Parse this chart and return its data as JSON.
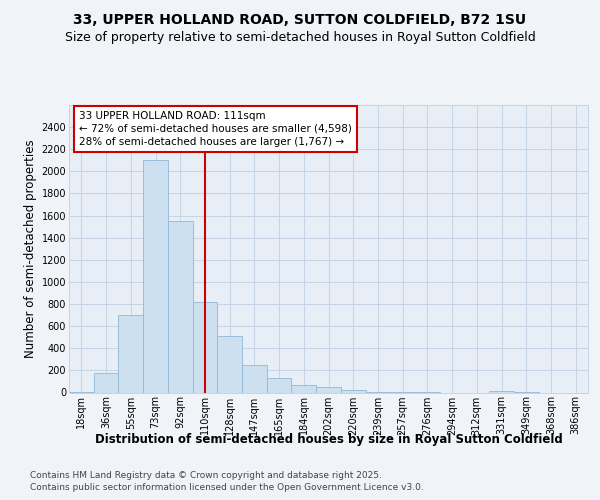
{
  "title": "33, UPPER HOLLAND ROAD, SUTTON COLDFIELD, B72 1SU",
  "subtitle": "Size of property relative to semi-detached houses in Royal Sutton Coldfield",
  "xlabel": "Distribution of semi-detached houses by size in Royal Sutton Coldfield",
  "ylabel": "Number of semi-detached properties",
  "footer1": "Contains HM Land Registry data © Crown copyright and database right 2025.",
  "footer2": "Contains public sector information licensed under the Open Government Licence v3.0.",
  "property_label": "33 UPPER HOLLAND ROAD: 111sqm",
  "smaller_pct": "← 72% of semi-detached houses are smaller (4,598)",
  "larger_pct": "28% of semi-detached houses are larger (1,767) →",
  "bin_labels": [
    "18sqm",
    "36sqm",
    "55sqm",
    "73sqm",
    "92sqm",
    "110sqm",
    "128sqm",
    "147sqm",
    "165sqm",
    "184sqm",
    "202sqm",
    "220sqm",
    "239sqm",
    "257sqm",
    "276sqm",
    "294sqm",
    "312sqm",
    "331sqm",
    "349sqm",
    "368sqm",
    "386sqm"
  ],
  "counts": [
    5,
    175,
    700,
    2100,
    1550,
    820,
    510,
    250,
    130,
    70,
    50,
    20,
    8,
    2,
    1,
    0,
    0,
    15,
    2,
    0,
    0
  ],
  "bar_color": "#cde0f0",
  "bar_edgecolor": "#91b8d9",
  "vline_color": "#cc0000",
  "vline_x_index": 5,
  "box_facecolor": "white",
  "box_edgecolor": "#cc0000",
  "ylim": [
    0,
    2600
  ],
  "yticks": [
    0,
    200,
    400,
    600,
    800,
    1000,
    1200,
    1400,
    1600,
    1800,
    2000,
    2200,
    2400
  ],
  "bg_color": "#f0f4f8",
  "plot_bg_color": "#e8eef5",
  "grid_color": "#c5d5e5",
  "title_fontsize": 10,
  "subtitle_fontsize": 9,
  "axis_label_fontsize": 8.5,
  "tick_fontsize": 7,
  "annotation_fontsize": 7.5,
  "footer_fontsize": 6.5
}
